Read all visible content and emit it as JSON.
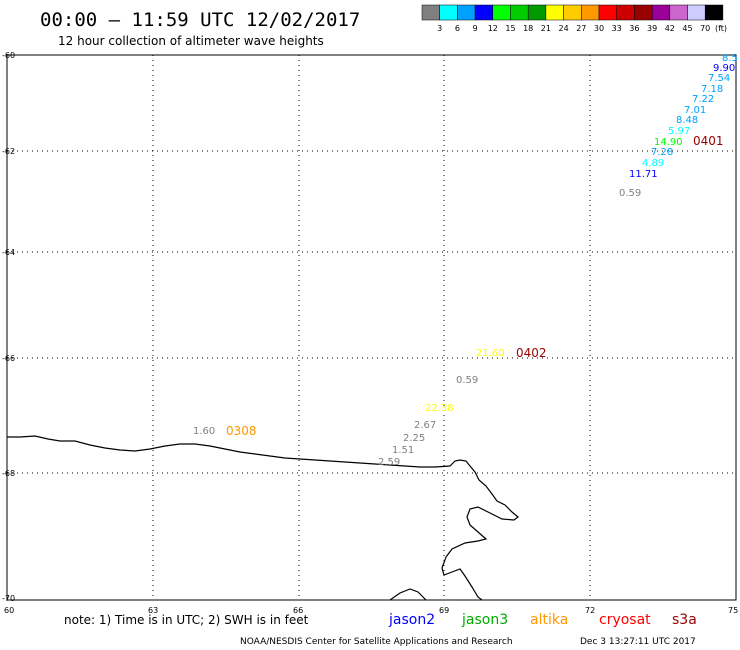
{
  "header": {
    "title": "00:00 – 11:59 UTC 12/02/2017",
    "subtitle": "12 hour collection of altimeter wave heights"
  },
  "legend": {
    "colors": [
      "#808080",
      "#00ffff",
      "#00a0ff",
      "#0000ff",
      "#00ff00",
      "#00cc00",
      "#009900",
      "#ffff00",
      "#ffcc00",
      "#ff9900",
      "#ff0000",
      "#cc0000",
      "#990000",
      "#990099",
      "#cc66cc",
      "#ccccff",
      "#000000"
    ],
    "labels": [
      "3",
      "6",
      "9",
      "12",
      "15",
      "18",
      "21",
      "24",
      "27",
      "30",
      "33",
      "36",
      "39",
      "42",
      "45",
      "70"
    ],
    "unit": "(ft)"
  },
  "axes": {
    "x_ticks": [
      "60",
      "63",
      "66",
      "69",
      "72",
      "75"
    ],
    "y_ticks": [
      "-60",
      "-62",
      "-64",
      "-66",
      "-68",
      "-70"
    ]
  },
  "passes": [
    {
      "label": "0401",
      "color": "#990000"
    },
    {
      "label": "0402",
      "color": "#990000"
    },
    {
      "label": "0308",
      "color": "#ff9900"
    }
  ],
  "swh_values": [
    {
      "text": "8.5",
      "color": "#00a0ff"
    },
    {
      "text": "9.90",
      "color": "#0000ff"
    },
    {
      "text": "7.54",
      "color": "#00a0ff"
    },
    {
      "text": "7.18",
      "color": "#00a0ff"
    },
    {
      "text": "7.22",
      "color": "#00a0ff"
    },
    {
      "text": "7.01",
      "color": "#00a0ff"
    },
    {
      "text": "8.48",
      "color": "#00a0ff"
    },
    {
      "text": "5.97",
      "color": "#00ffff"
    },
    {
      "text": "14.90",
      "color": "#00ff00"
    },
    {
      "text": "7.28",
      "color": "#00a0ff"
    },
    {
      "text": "4.89",
      "color": "#00ffff"
    },
    {
      "text": "11.71",
      "color": "#0000ff"
    },
    {
      "text": "0.59",
      "color": "#808080"
    },
    {
      "text": "21.60",
      "color": "#ffff00"
    },
    {
      "text": "0.59",
      "color": "#808080"
    },
    {
      "text": "22.38",
      "color": "#ffff00"
    },
    {
      "text": "2.67",
      "color": "#808080"
    },
    {
      "text": "2.25",
      "color": "#808080"
    },
    {
      "text": "1.51",
      "color": "#808080"
    },
    {
      "text": "2.59",
      "color": "#808080"
    },
    {
      "text": "1.60",
      "color": "#808080"
    }
  ],
  "footer": {
    "note": "note:  1) Time is in UTC;  2) SWH is in feet",
    "satellites": [
      {
        "name": "jason2",
        "color": "#0000ff"
      },
      {
        "name": "jason3",
        "color": "#00aa00"
      },
      {
        "name": "altika",
        "color": "#ff9900"
      },
      {
        "name": "cryosat",
        "color": "#ff0000"
      },
      {
        "name": "s3a",
        "color": "#990000"
      }
    ],
    "credit": "NOAA/NESDIS Center for Satellite Applications and Research",
    "timestamp": "Dec  3 13:27:11 UTC 2017"
  }
}
